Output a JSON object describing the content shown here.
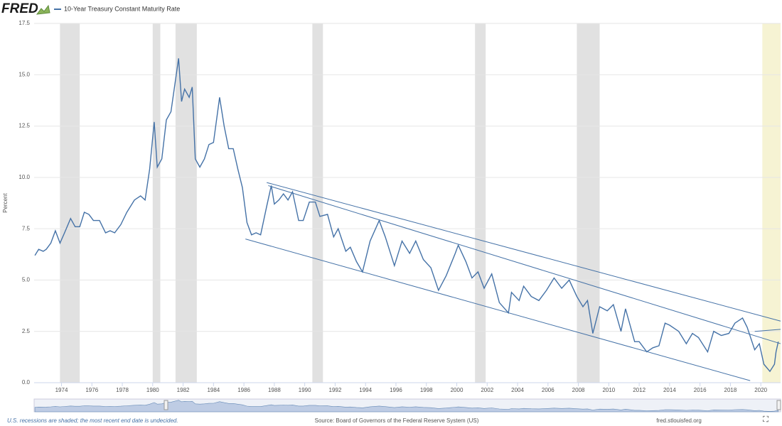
{
  "header": {
    "logo": "FRED"
  },
  "footer": {
    "note": "U.S. recessions are shaded; the most recent end date is undecided.",
    "source": "Source: Board of Governors of the Federal Reserve System (US)",
    "site": "fred.stlouisfed.org"
  },
  "chart_data": {
    "type": "line",
    "y_label": "Percent",
    "xlim": [
      1972.2,
      2021.3
    ],
    "ylim": [
      0,
      17.5
    ],
    "xticks": [
      1974,
      1976,
      1978,
      1980,
      1982,
      1984,
      1986,
      1988,
      1990,
      1992,
      1994,
      1996,
      1998,
      2000,
      2002,
      2004,
      2006,
      2008,
      2010,
      2012,
      2014,
      2016,
      2018,
      2020
    ],
    "yticks": [
      {
        "value": 0,
        "label": "0.0"
      },
      2.5,
      {
        "value": 5,
        "label": "5.0"
      },
      7.5,
      {
        "value": 10,
        "label": "10.0"
      },
      12.5,
      {
        "value": 15,
        "label": "15.0"
      },
      17.5
    ],
    "grid": true,
    "recessions": [
      {
        "start": 1973.9,
        "end": 1975.2,
        "color": "#e1e1e1"
      },
      {
        "start": 1980.0,
        "end": 1980.5,
        "color": "#e1e1e1"
      },
      {
        "start": 1981.5,
        "end": 1982.9,
        "color": "#e1e1e1"
      },
      {
        "start": 1990.5,
        "end": 1991.2,
        "color": "#e1e1e1"
      },
      {
        "start": 2001.2,
        "end": 2001.9,
        "color": "#e1e1e1"
      },
      {
        "start": 2007.9,
        "end": 2009.4,
        "color": "#e1e1e1"
      },
      {
        "start": 2020.1,
        "end": 2021.3,
        "color": "#f6f3d3"
      }
    ],
    "annotation_lines": [
      {
        "x1": 1987.5,
        "y1": 9.75,
        "x2": 2021.3,
        "y2": 3.0
      },
      {
        "x1": 1987.6,
        "y1": 9.6,
        "x2": 2021.3,
        "y2": 1.9
      },
      {
        "x1": 1986.1,
        "y1": 7.0,
        "x2": 2019.3,
        "y2": 0.1
      },
      {
        "x1": 2019.6,
        "y1": 2.5,
        "x2": 2021.3,
        "y2": 2.6
      }
    ],
    "annotation_color": "#4572a7",
    "series": [
      {
        "name": "10-Year Treasury Constant Maturity Rate",
        "color": "#4572a7",
        "x": [
          1972.25,
          1972.5,
          1972.8,
          1973.0,
          1973.3,
          1973.6,
          1973.9,
          1974.2,
          1974.6,
          1974.9,
          1975.2,
          1975.5,
          1975.8,
          1976.1,
          1976.5,
          1976.9,
          1977.2,
          1977.5,
          1977.9,
          1978.3,
          1978.8,
          1979.2,
          1979.5,
          1979.8,
          1980.1,
          1980.3,
          1980.6,
          1980.9,
          1981.2,
          1981.7,
          1981.9,
          1982.1,
          1982.4,
          1982.6,
          1982.8,
          1983.1,
          1983.4,
          1983.7,
          1984.0,
          1984.4,
          1984.7,
          1985.0,
          1985.3,
          1985.6,
          1985.9,
          1986.2,
          1986.5,
          1986.8,
          1987.1,
          1987.5,
          1987.8,
          1988.0,
          1988.3,
          1988.6,
          1988.9,
          1989.2,
          1989.6,
          1989.9,
          1990.3,
          1990.7,
          1991.0,
          1991.5,
          1991.9,
          1992.2,
          1992.7,
          1993.0,
          1993.4,
          1993.8,
          1994.3,
          1994.9,
          1995.3,
          1995.9,
          1996.4,
          1996.9,
          1997.3,
          1997.8,
          1998.3,
          1998.8,
          1999.3,
          1999.9,
          2000.1,
          2000.6,
          2001.0,
          2001.4,
          2001.8,
          2002.3,
          2002.8,
          2003.4,
          2003.6,
          2004.1,
          2004.4,
          2004.9,
          2005.4,
          2005.9,
          2006.4,
          2006.9,
          2007.4,
          2007.9,
          2008.3,
          2008.6,
          2008.95,
          2009.4,
          2009.9,
          2010.3,
          2010.8,
          2011.1,
          2011.7,
          2012.0,
          2012.5,
          2012.9,
          2013.3,
          2013.7,
          2014.0,
          2014.6,
          2015.1,
          2015.5,
          2015.9,
          2016.5,
          2016.9,
          2017.4,
          2017.9,
          2018.3,
          2018.8,
          2019.1,
          2019.6,
          2019.9,
          2020.2,
          2020.6,
          2020.9,
          2021.0,
          2021.15
        ],
        "values": [
          6.2,
          6.5,
          6.4,
          6.5,
          6.8,
          7.4,
          6.8,
          7.3,
          8.0,
          7.6,
          7.6,
          8.3,
          8.2,
          7.9,
          7.9,
          7.3,
          7.4,
          7.3,
          7.7,
          8.3,
          8.9,
          9.1,
          8.9,
          10.4,
          12.7,
          10.5,
          10.9,
          12.8,
          13.2,
          15.8,
          13.7,
          14.3,
          13.9,
          14.4,
          10.9,
          10.5,
          10.9,
          11.6,
          11.7,
          13.9,
          12.5,
          11.4,
          11.4,
          10.4,
          9.5,
          7.8,
          7.2,
          7.3,
          7.2,
          8.6,
          9.6,
          8.7,
          8.9,
          9.2,
          8.9,
          9.3,
          7.9,
          7.9,
          8.8,
          8.8,
          8.1,
          8.2,
          7.1,
          7.5,
          6.4,
          6.6,
          5.9,
          5.4,
          6.9,
          7.9,
          7.1,
          5.7,
          6.9,
          6.3,
          6.9,
          6.0,
          5.6,
          4.5,
          5.2,
          6.3,
          6.7,
          5.9,
          5.1,
          5.4,
          4.6,
          5.3,
          3.9,
          3.4,
          4.4,
          4.0,
          4.7,
          4.2,
          4.0,
          4.5,
          5.1,
          4.6,
          5.0,
          4.2,
          3.7,
          4.0,
          2.4,
          3.7,
          3.5,
          3.8,
          2.5,
          3.6,
          2.0,
          2.0,
          1.5,
          1.7,
          1.8,
          2.9,
          2.8,
          2.5,
          1.9,
          2.4,
          2.2,
          1.5,
          2.5,
          2.3,
          2.4,
          2.9,
          3.15,
          2.7,
          1.6,
          1.9,
          0.9,
          0.55,
          0.9,
          1.5,
          2.0
        ]
      }
    ]
  }
}
